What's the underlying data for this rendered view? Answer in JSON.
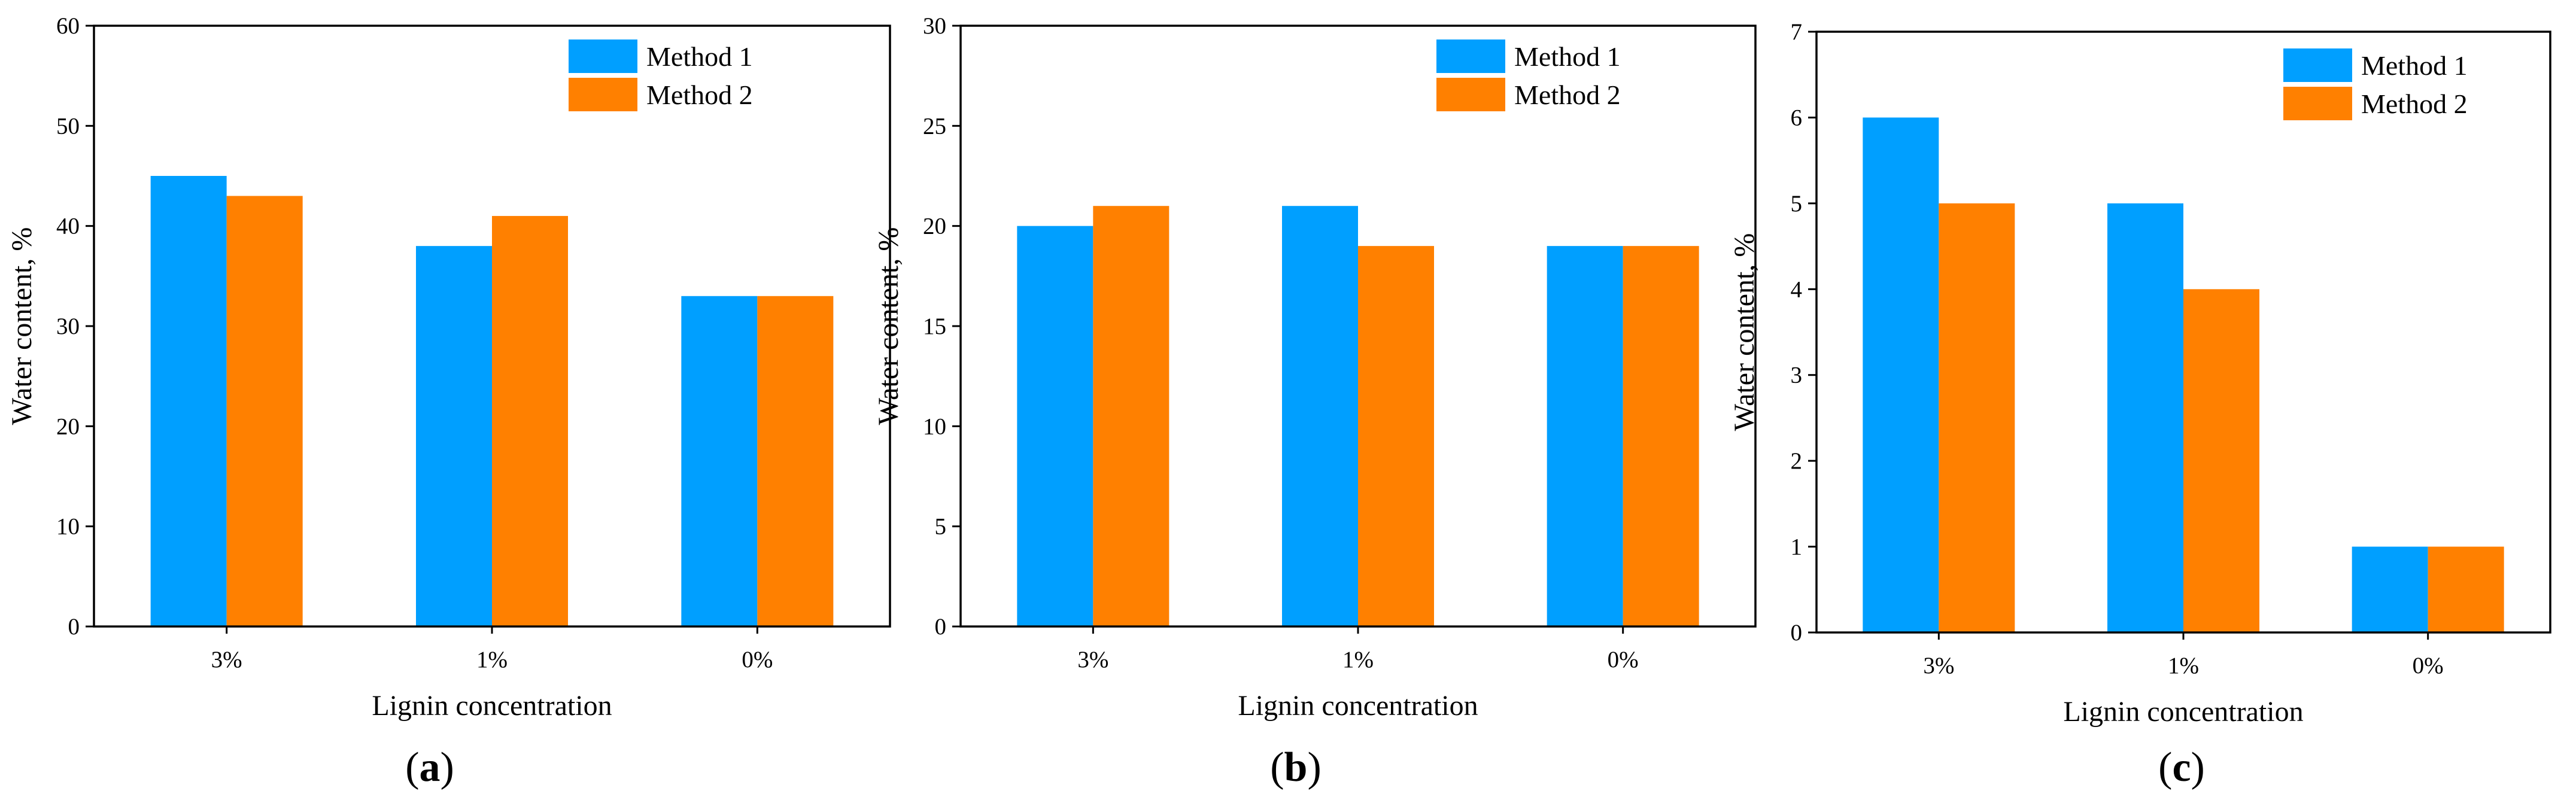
{
  "colors": {
    "method1": "#009FFF",
    "method2": "#FF8000",
    "axis": "#000000"
  },
  "chart_data": [
    {
      "type": "bar",
      "panel": "a",
      "title": "",
      "xlabel": "Lignin concentration",
      "ylabel": "Water content, %",
      "categories": [
        "3%",
        "1%",
        "0%"
      ],
      "ylim": [
        0,
        60
      ],
      "yticks": [
        0,
        10,
        20,
        30,
        40,
        50,
        60
      ],
      "series": [
        {
          "name": "Method 1",
          "values": [
            45,
            38,
            33
          ]
        },
        {
          "name": "Method 2",
          "values": [
            43,
            41,
            33
          ]
        }
      ],
      "legend": "top-right"
    },
    {
      "type": "bar",
      "panel": "b",
      "title": "",
      "xlabel": "Lignin concentration",
      "ylabel": "Water content, %",
      "categories": [
        "3%",
        "1%",
        "0%"
      ],
      "ylim": [
        0,
        30
      ],
      "yticks": [
        0,
        5,
        10,
        15,
        20,
        25,
        30
      ],
      "series": [
        {
          "name": "Method 1",
          "values": [
            20,
            21,
            19
          ]
        },
        {
          "name": "Method 2",
          "values": [
            21,
            19,
            19
          ]
        }
      ],
      "legend": "top-right"
    },
    {
      "type": "bar",
      "panel": "c",
      "title": "",
      "xlabel": "Lignin concentration",
      "ylabel": "Water content, %",
      "categories": [
        "3%",
        "1%",
        "0%"
      ],
      "ylim": [
        0,
        7
      ],
      "yticks": [
        0,
        1,
        2,
        3,
        4,
        5,
        6,
        7
      ],
      "series": [
        {
          "name": "Method 1",
          "values": [
            6,
            5,
            1
          ]
        },
        {
          "name": "Method 2",
          "values": [
            5,
            4,
            1
          ]
        }
      ],
      "legend": "top-right"
    }
  ]
}
